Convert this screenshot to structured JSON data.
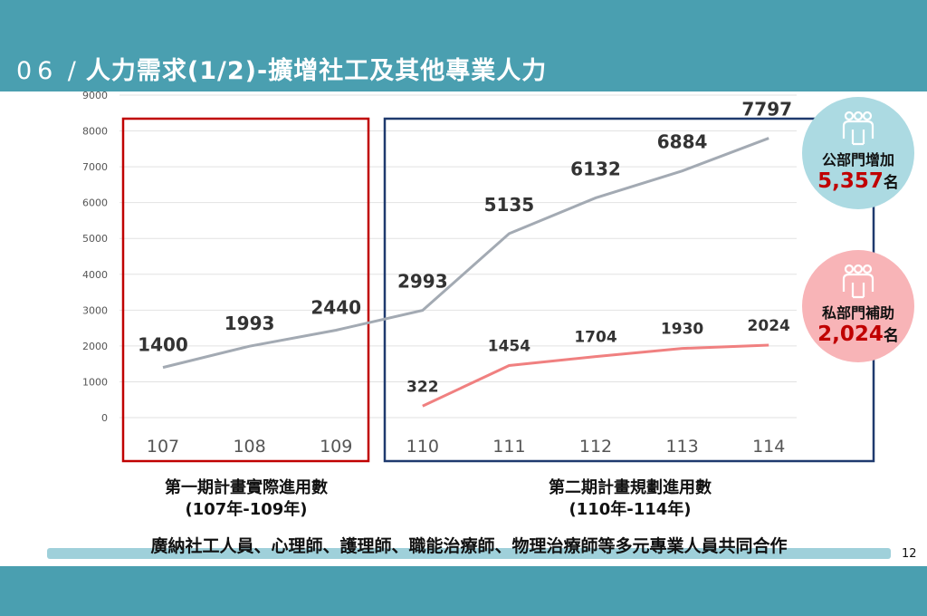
{
  "header": {
    "number": "06",
    "separator": "/",
    "title": "人力需求(1/2)-擴增社工及其他專業人力"
  },
  "chart_data": {
    "type": "line",
    "categories": [
      "107",
      "108",
      "109",
      "110",
      "111",
      "112",
      "113",
      "114"
    ],
    "ylim": [
      0,
      9000
    ],
    "yticks": [
      "0",
      "1000",
      "2000",
      "3000",
      "4000",
      "5000",
      "6000",
      "7000",
      "8000",
      "9000"
    ],
    "grid": true,
    "series": [
      {
        "name": "公部門",
        "color": "#a3aab3",
        "values": [
          1400,
          1993,
          2440,
          2993,
          5135,
          6132,
          6884,
          7797
        ],
        "labels": [
          "1400",
          "1993",
          "2440",
          "2993",
          "5135",
          "6132",
          "6884",
          "7797"
        ]
      },
      {
        "name": "私部門",
        "color": "#f08080",
        "values": [
          null,
          null,
          null,
          322,
          1454,
          1704,
          1930,
          2024
        ],
        "labels": [
          "",
          "",
          "",
          "322",
          "1454",
          "1704",
          "1930",
          "2024"
        ]
      }
    ],
    "groups": [
      {
        "line1": "第一期計畫實際進用數",
        "line2": "(107年-109年)",
        "color": "#c00000"
      },
      {
        "line1": "第二期計畫規劃進用數",
        "line2": "(110年-114年)",
        "color": "#1f3a6e"
      }
    ]
  },
  "summary": [
    {
      "label": "公部門增加",
      "value": "5,357",
      "unit": "名",
      "bg": "#acdae2"
    },
    {
      "label": "私部門補助",
      "value": "2,024",
      "unit": "名",
      "bg": "#f8b4b7"
    }
  ],
  "footer": "廣納社工人員、心理師、護理師、職能治療師、物理治療師等多元專業人員共同合作",
  "page_number": "12"
}
